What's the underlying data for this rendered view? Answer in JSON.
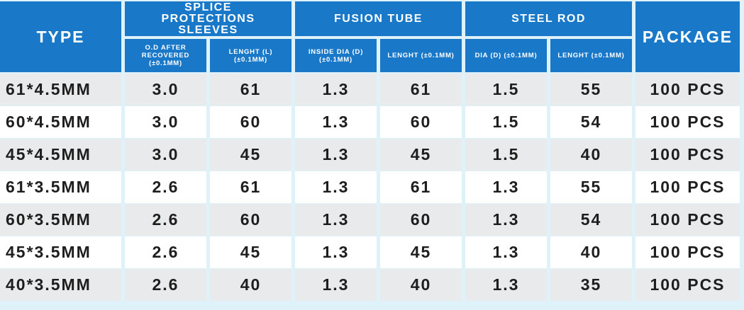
{
  "table": {
    "headers": {
      "type": "TYPE",
      "groups": [
        {
          "label": "SPLICE PROTECTIONS SLEEVES",
          "columns": [
            "O.D AFTER RECOVERED (±0.1MM)",
            "LENGHT (L) (±0.1MM)"
          ]
        },
        {
          "label": "FUSION TUBE",
          "columns": [
            "INSIDE DIA (D) (±0.1MM)",
            "LENGHT (±0.1MM)"
          ]
        },
        {
          "label": "STEEL ROD",
          "columns": [
            "DIA (D) (±0.1MM)",
            "LENGHT (±0.1MM)"
          ]
        }
      ],
      "package": "PACKAGE"
    },
    "rows": [
      [
        "61*4.5MM",
        "3.0",
        "61",
        "1.3",
        "61",
        "1.5",
        "55",
        "100 PCS"
      ],
      [
        "60*4.5MM",
        "3.0",
        "60",
        "1.3",
        "60",
        "1.5",
        "54",
        "100 PCS"
      ],
      [
        "45*4.5MM",
        "3.0",
        "45",
        "1.3",
        "45",
        "1.5",
        "40",
        "100 PCS"
      ],
      [
        "61*3.5MM",
        "2.6",
        "61",
        "1.3",
        "61",
        "1.3",
        "55",
        "100 PCS"
      ],
      [
        "60*3.5MM",
        "2.6",
        "60",
        "1.3",
        "60",
        "1.3",
        "54",
        "100 PCS"
      ],
      [
        "45*3.5MM",
        "2.6",
        "45",
        "1.3",
        "45",
        "1.3",
        "40",
        "100 PCS"
      ],
      [
        "40*3.5MM",
        "2.6",
        "40",
        "1.3",
        "40",
        "1.3",
        "35",
        "100 PCS"
      ]
    ]
  }
}
